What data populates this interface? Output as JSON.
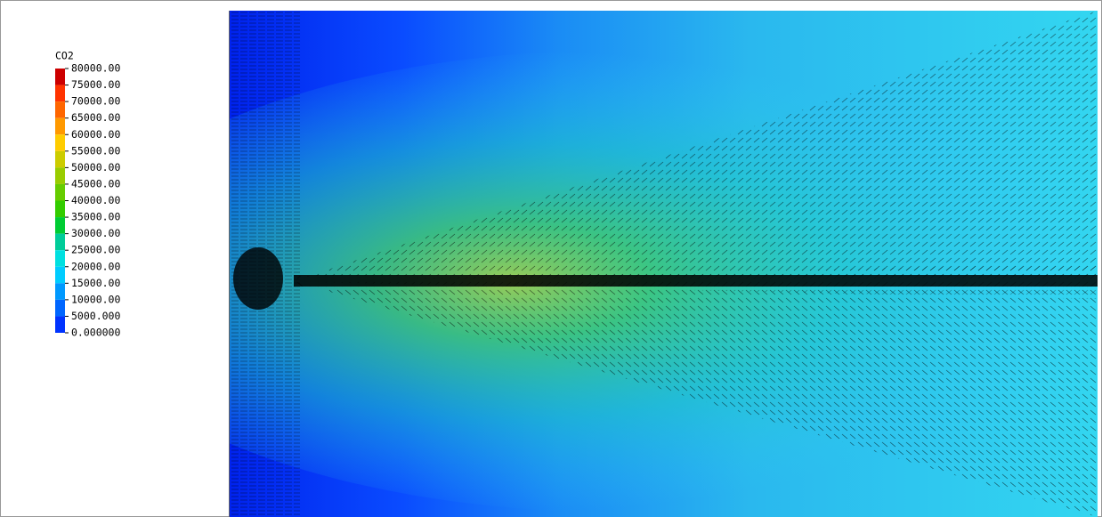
{
  "chart_data": {
    "type": "contour",
    "colorbar": {
      "title": "CO2",
      "ticks": [
        {
          "value": 80000,
          "label": "80000.00"
        },
        {
          "value": 75000,
          "label": "75000.00"
        },
        {
          "value": 70000,
          "label": "70000.00"
        },
        {
          "value": 65000,
          "label": "65000.00"
        },
        {
          "value": 60000,
          "label": "60000.00"
        },
        {
          "value": 55000,
          "label": "55000.00"
        },
        {
          "value": 50000,
          "label": "50000.00"
        },
        {
          "value": 45000,
          "label": "45000.00"
        },
        {
          "value": 40000,
          "label": "40000.00"
        },
        {
          "value": 35000,
          "label": "35000.00"
        },
        {
          "value": 30000,
          "label": "30000.00"
        },
        {
          "value": 25000,
          "label": "25000.00"
        },
        {
          "value": 20000,
          "label": "20000.00"
        },
        {
          "value": 15000,
          "label": "15000.00"
        },
        {
          "value": 10000,
          "label": "10000.00"
        },
        {
          "value": 5000,
          "label": "5000.000"
        },
        {
          "value": 0,
          "label": "0.000000"
        }
      ],
      "colors": [
        "#cc0000",
        "#ff3300",
        "#ff6600",
        "#ff9900",
        "#ffcc00",
        "#cccc00",
        "#99cc00",
        "#66cc00",
        "#33cc00",
        "#00cc33",
        "#00cc99",
        "#00e0e0",
        "#00ccff",
        "#0099ff",
        "#0066ff",
        "#0033ff"
      ],
      "lim": [
        0,
        80000
      ]
    }
  }
}
